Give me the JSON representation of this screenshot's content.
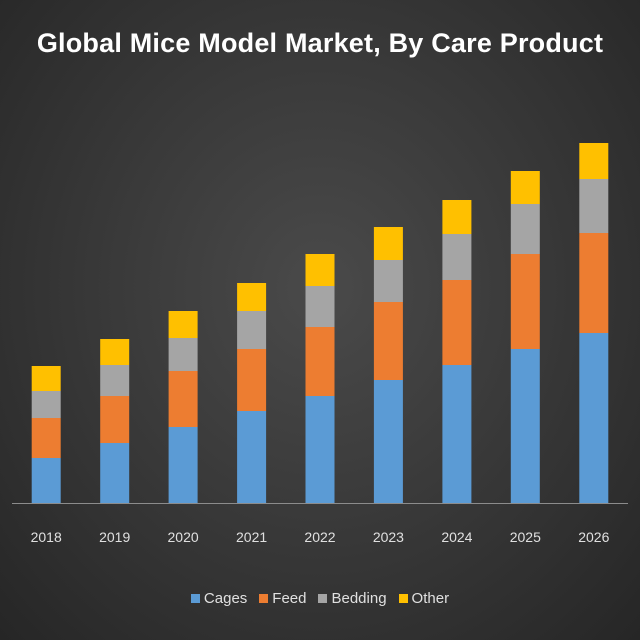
{
  "chart_data": {
    "type": "bar",
    "stacked": true,
    "title": "Global Mice Model Market, By Care Product",
    "xlabel": "",
    "ylabel": "",
    "categories": [
      "2018",
      "2019",
      "2020",
      "2021",
      "2022",
      "2023",
      "2024",
      "2025",
      "2026"
    ],
    "series": [
      {
        "name": "Cages",
        "color": "#5b9bd5",
        "values": [
          45,
          60,
          76,
          92,
          107,
          123,
          138,
          154,
          170
        ]
      },
      {
        "name": "Feed",
        "color": "#ed7d31",
        "values": [
          40,
          47,
          56,
          62,
          69,
          78,
          85,
          95,
          100
        ]
      },
      {
        "name": "Bedding",
        "color": "#a5a5a5",
        "values": [
          27,
          31,
          33,
          38,
          41,
          42,
          46,
          50,
          54
        ]
      },
      {
        "name": "Other",
        "color": "#ffc000",
        "values": [
          25,
          26,
          27,
          28,
          32,
          33,
          34,
          33,
          36
        ]
      }
    ],
    "ylim": [
      0,
      370
    ],
    "grid": false,
    "legend": "bottom"
  }
}
